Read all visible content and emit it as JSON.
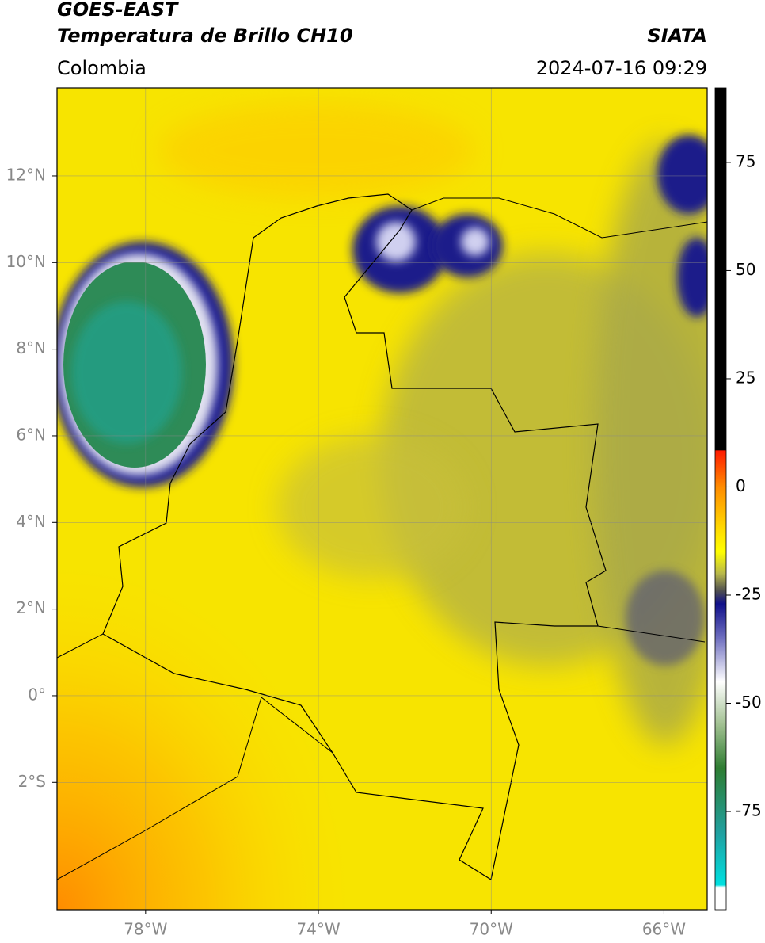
{
  "header": {
    "title": "GOES-EAST",
    "subtitle": "Temperatura de Brillo CH10",
    "source": "SIATA",
    "region": "Colombia",
    "timestamp": "2024-07-16 09:29"
  },
  "map": {
    "xlim": [
      -80.05,
      -65.0
    ],
    "ylim": [
      -4.94,
      14.03
    ],
    "xticks": [
      {
        "value": -78,
        "label": "78°W"
      },
      {
        "value": -74,
        "label": "74°W"
      },
      {
        "value": -70,
        "label": "70°W"
      },
      {
        "value": -66,
        "label": "66°W"
      }
    ],
    "yticks": [
      {
        "value": 12,
        "label": "12°N"
      },
      {
        "value": 10,
        "label": "10°N"
      },
      {
        "value": 8,
        "label": "8°N"
      },
      {
        "value": 6,
        "label": "6°N"
      },
      {
        "value": 4,
        "label": "4°N"
      },
      {
        "value": 2,
        "label": "2°N"
      },
      {
        "value": 0,
        "label": "0°"
      },
      {
        "value": -2,
        "label": "2°S"
      }
    ],
    "grid": true
  },
  "colorbar": {
    "lim": [
      -97.7,
      92.2
    ],
    "ticks": [
      75,
      50,
      25,
      0,
      -25,
      -50,
      -75
    ],
    "stops": [
      {
        "value": 92.2,
        "color": "#000000"
      },
      {
        "value": 8.5,
        "color": "#000000"
      },
      {
        "value": 8.4,
        "color": "#ff1a00"
      },
      {
        "value": 0,
        "color": "#ff8c00"
      },
      {
        "value": -10,
        "color": "#ffdd00"
      },
      {
        "value": -15,
        "color": "#ffff00"
      },
      {
        "value": -20,
        "color": "#b8b84a"
      },
      {
        "value": -24,
        "color": "#505050"
      },
      {
        "value": -27,
        "color": "#10108a"
      },
      {
        "value": -35,
        "color": "#7070c0"
      },
      {
        "value": -45,
        "color": "#ffffff"
      },
      {
        "value": -55,
        "color": "#a0c090"
      },
      {
        "value": -65,
        "color": "#2e7d32"
      },
      {
        "value": -80,
        "color": "#20a0a0"
      },
      {
        "value": -92,
        "color": "#00e0e0"
      },
      {
        "value": -92.5,
        "color": "#ffffff"
      },
      {
        "value": -97.7,
        "color": "#ffffff"
      }
    ]
  }
}
